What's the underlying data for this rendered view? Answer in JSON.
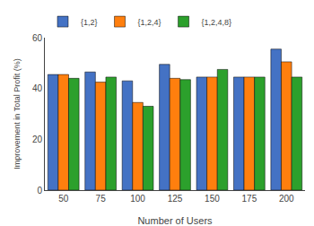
{
  "chart_data": {
    "type": "bar",
    "categories": [
      50,
      75,
      100,
      125,
      150,
      175,
      200
    ],
    "series": [
      {
        "name": "{1,2}",
        "color": "#4472c4",
        "values": [
          45.5,
          46.5,
          43.0,
          49.5,
          44.5,
          44.5,
          55.5
        ]
      },
      {
        "name": "{1,2,4}",
        "color": "#ff7f0e",
        "values": [
          45.5,
          42.5,
          34.5,
          44.0,
          44.5,
          44.5,
          50.5
        ]
      },
      {
        "name": "{1,2,4,8}",
        "color": "#2ca02c",
        "values": [
          44.0,
          44.5,
          33.0,
          43.5,
          47.5,
          44.5,
          44.5
        ]
      }
    ],
    "xlabel": "Number of Users",
    "ylabel": "Improvement in Total Profit (%)",
    "ylim": [
      0,
      60
    ],
    "yticks": [
      0,
      20,
      40,
      60
    ],
    "grid": false,
    "legend": "upper left"
  }
}
